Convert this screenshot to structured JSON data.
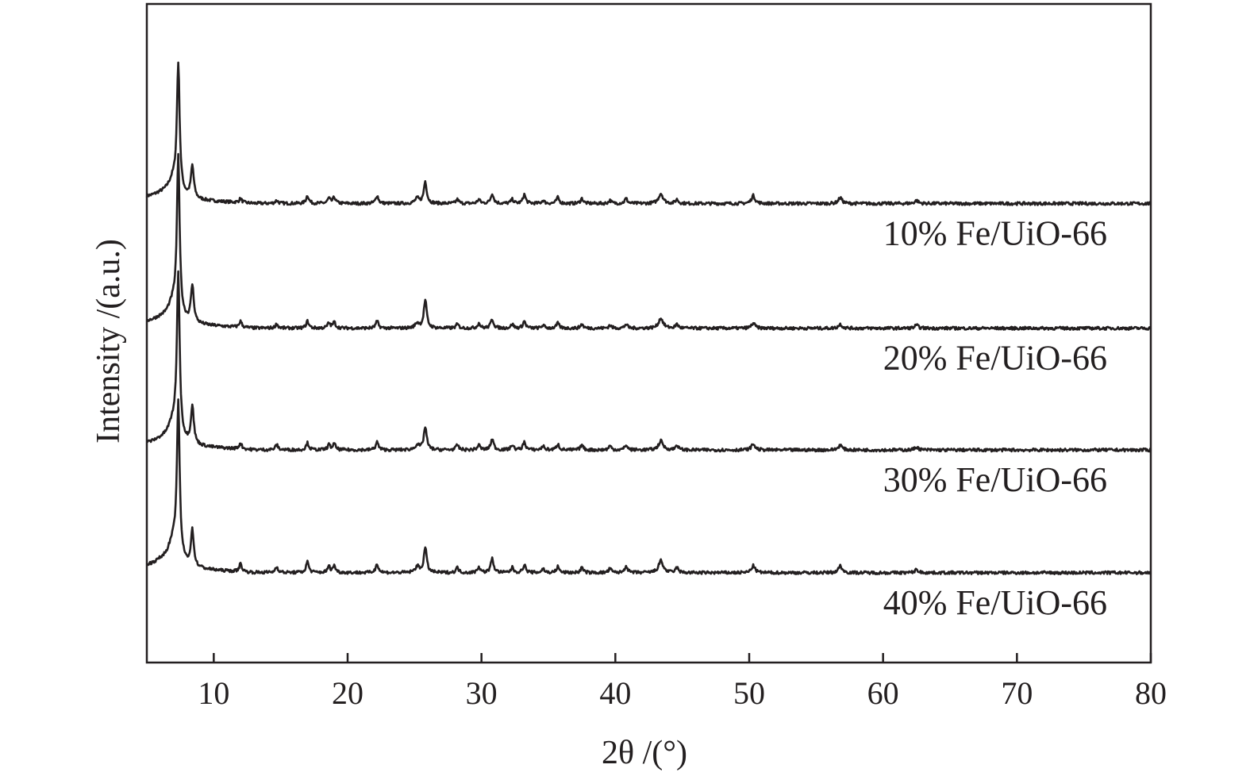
{
  "chart_data": {
    "type": "line",
    "xlabel": "2θ /(°)",
    "ylabel": "Intensity /(a.u.)",
    "xlim": [
      5,
      80
    ],
    "xticks": [
      10,
      20,
      30,
      40,
      50,
      60,
      70,
      80
    ],
    "yticks": "none",
    "grid": false,
    "legend": "none",
    "line_color": "#231f20",
    "series": [
      {
        "name": "10%  Fe/UiO-66",
        "offset": 3.6,
        "drift": 0.05,
        "noise": 0.015,
        "peaks": [
          [
            6.1,
            0.04,
            0.8
          ],
          [
            7.0,
            0.18,
            0.5
          ],
          [
            7.35,
            1.25,
            0.12
          ],
          [
            8.4,
            0.32,
            0.13
          ],
          [
            12.0,
            0.04,
            0.12
          ],
          [
            14.7,
            0.03,
            0.12
          ],
          [
            17.0,
            0.08,
            0.12
          ],
          [
            18.6,
            0.05,
            0.12
          ],
          [
            19.0,
            0.06,
            0.12
          ],
          [
            22.2,
            0.08,
            0.12
          ],
          [
            25.2,
            0.05,
            0.18
          ],
          [
            25.8,
            0.22,
            0.13
          ],
          [
            28.2,
            0.04,
            0.12
          ],
          [
            29.8,
            0.04,
            0.12
          ],
          [
            30.8,
            0.1,
            0.13
          ],
          [
            32.3,
            0.04,
            0.12
          ],
          [
            33.2,
            0.09,
            0.12
          ],
          [
            34.6,
            0.03,
            0.12
          ],
          [
            35.7,
            0.06,
            0.12
          ],
          [
            37.5,
            0.05,
            0.12
          ],
          [
            39.6,
            0.03,
            0.12
          ],
          [
            40.8,
            0.05,
            0.12
          ],
          [
            43.4,
            0.1,
            0.2
          ],
          [
            44.6,
            0.04,
            0.12
          ],
          [
            50.3,
            0.08,
            0.16
          ],
          [
            56.8,
            0.06,
            0.16
          ],
          [
            62.5,
            0.03,
            0.16
          ]
        ]
      },
      {
        "name": "20%  Fe/UiO-66",
        "offset": 2.35,
        "drift": 0.05,
        "noise": 0.015,
        "peaks": [
          [
            6.1,
            0.04,
            0.8
          ],
          [
            7.0,
            0.2,
            0.5
          ],
          [
            7.35,
            1.55,
            0.12
          ],
          [
            8.4,
            0.37,
            0.13
          ],
          [
            12.0,
            0.06,
            0.12
          ],
          [
            14.7,
            0.04,
            0.12
          ],
          [
            17.0,
            0.07,
            0.12
          ],
          [
            18.6,
            0.05,
            0.12
          ],
          [
            19.0,
            0.06,
            0.12
          ],
          [
            22.2,
            0.07,
            0.12
          ],
          [
            25.2,
            0.05,
            0.18
          ],
          [
            25.8,
            0.28,
            0.13
          ],
          [
            28.2,
            0.04,
            0.12
          ],
          [
            29.8,
            0.05,
            0.12
          ],
          [
            30.8,
            0.09,
            0.13
          ],
          [
            32.3,
            0.04,
            0.12
          ],
          [
            33.2,
            0.07,
            0.12
          ],
          [
            34.6,
            0.03,
            0.12
          ],
          [
            35.7,
            0.05,
            0.12
          ],
          [
            37.5,
            0.04,
            0.12
          ],
          [
            39.6,
            0.03,
            0.12
          ],
          [
            40.8,
            0.04,
            0.12
          ],
          [
            43.4,
            0.1,
            0.2
          ],
          [
            44.6,
            0.04,
            0.12
          ],
          [
            50.3,
            0.05,
            0.16
          ],
          [
            56.8,
            0.04,
            0.16
          ],
          [
            62.5,
            0.03,
            0.16
          ]
        ]
      },
      {
        "name": "30%  Fe/UiO-66",
        "offset": 1.13,
        "drift": 0.05,
        "noise": 0.015,
        "peaks": [
          [
            6.1,
            0.04,
            0.8
          ],
          [
            7.0,
            0.22,
            0.5
          ],
          [
            7.35,
            1.6,
            0.12
          ],
          [
            8.4,
            0.38,
            0.13
          ],
          [
            12.0,
            0.06,
            0.12
          ],
          [
            14.7,
            0.05,
            0.12
          ],
          [
            17.0,
            0.07,
            0.12
          ],
          [
            18.6,
            0.05,
            0.12
          ],
          [
            19.0,
            0.06,
            0.12
          ],
          [
            22.2,
            0.08,
            0.12
          ],
          [
            25.2,
            0.05,
            0.18
          ],
          [
            25.8,
            0.23,
            0.13
          ],
          [
            28.2,
            0.05,
            0.12
          ],
          [
            29.8,
            0.05,
            0.12
          ],
          [
            30.8,
            0.11,
            0.13
          ],
          [
            32.3,
            0.05,
            0.12
          ],
          [
            33.2,
            0.08,
            0.12
          ],
          [
            34.6,
            0.04,
            0.12
          ],
          [
            35.7,
            0.06,
            0.12
          ],
          [
            37.5,
            0.05,
            0.12
          ],
          [
            39.6,
            0.04,
            0.12
          ],
          [
            40.8,
            0.05,
            0.12
          ],
          [
            43.4,
            0.09,
            0.2
          ],
          [
            44.6,
            0.05,
            0.12
          ],
          [
            50.3,
            0.06,
            0.16
          ],
          [
            56.8,
            0.05,
            0.16
          ],
          [
            62.5,
            0.03,
            0.16
          ]
        ]
      },
      {
        "name": "40%  Fe/UiO-66",
        "offset": -0.1,
        "drift": 0.05,
        "noise": 0.015,
        "peaks": [
          [
            6.1,
            0.05,
            0.8
          ],
          [
            7.0,
            0.25,
            0.5
          ],
          [
            7.35,
            1.5,
            0.12
          ],
          [
            8.4,
            0.36,
            0.13
          ],
          [
            12.0,
            0.08,
            0.12
          ],
          [
            14.7,
            0.06,
            0.12
          ],
          [
            17.0,
            0.11,
            0.12
          ],
          [
            18.6,
            0.06,
            0.12
          ],
          [
            19.0,
            0.07,
            0.12
          ],
          [
            22.2,
            0.09,
            0.12
          ],
          [
            25.2,
            0.06,
            0.18
          ],
          [
            25.8,
            0.25,
            0.13
          ],
          [
            28.2,
            0.05,
            0.12
          ],
          [
            29.8,
            0.06,
            0.12
          ],
          [
            30.8,
            0.14,
            0.13
          ],
          [
            32.3,
            0.05,
            0.12
          ],
          [
            33.2,
            0.08,
            0.12
          ],
          [
            34.6,
            0.04,
            0.12
          ],
          [
            35.7,
            0.06,
            0.12
          ],
          [
            37.5,
            0.05,
            0.12
          ],
          [
            39.6,
            0.04,
            0.12
          ],
          [
            40.8,
            0.07,
            0.12
          ],
          [
            43.4,
            0.12,
            0.2
          ],
          [
            44.6,
            0.05,
            0.12
          ],
          [
            50.3,
            0.07,
            0.16
          ],
          [
            56.8,
            0.07,
            0.16
          ],
          [
            62.5,
            0.03,
            0.16
          ]
        ]
      }
    ]
  }
}
